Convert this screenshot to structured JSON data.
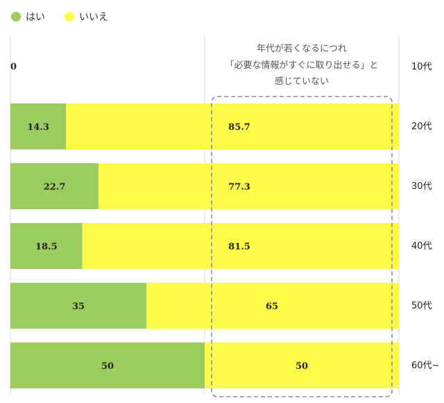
{
  "legend": [
    {
      "label": "はい",
      "color": "#9ccb5f"
    },
    {
      "label": "いいえ",
      "color": "#fdfb4a"
    }
  ],
  "annotation": {
    "lines": [
      "年代が若くなるにつれ",
      "「必要な情報がすぐに取り出せる」と",
      "感じていない"
    ]
  },
  "chart_data": {
    "type": "bar",
    "orientation": "horizontal",
    "stacked": true,
    "categories": [
      "10代",
      "20代",
      "30代",
      "40代",
      "50代",
      "60代~"
    ],
    "series": [
      {
        "name": "はい",
        "values": [
          0,
          14.3,
          22.7,
          18.5,
          35,
          50
        ],
        "color": "#9ccb5f"
      },
      {
        "name": "いいえ",
        "values": [
          null,
          85.7,
          77.3,
          81.5,
          65,
          50
        ],
        "color": "#fdfb4a"
      }
    ],
    "data_labels": [
      [
        "0",
        "14.3",
        "22.7",
        "18.5",
        "35",
        "50"
      ],
      [
        "",
        "85.7",
        "77.3",
        "81.5",
        "65",
        "50"
      ]
    ],
    "xlim": [
      0,
      100
    ],
    "grid": true,
    "legend_position": "top-left"
  }
}
